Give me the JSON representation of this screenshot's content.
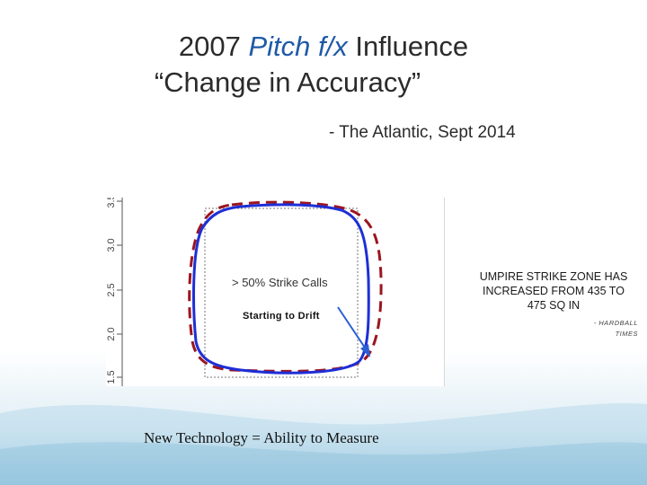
{
  "title": {
    "year": "2007",
    "pitch_fx": "Pitch f/x",
    "influence": "Influence",
    "line2": "“Change in Accuracy”"
  },
  "source": "- The Atlantic, Sept 2014",
  "plot": {
    "y_ticks": [
      "3.5",
      "3.0",
      "2.5",
      "2.0",
      "1.5"
    ],
    "strike_label": "> 50% Strike Calls",
    "drift_label": "Starting to Drift",
    "colors": {
      "solid_zone": "#1e2fd6",
      "dashed_zone": "#9b1520",
      "box": "#777777",
      "arrow": "#2a5fd6"
    }
  },
  "umpire_note": "UMPIRE STRIKE ZONE HAS INCREASED FROM 435 TO 475 SQ IN",
  "attribution": "- HARDBALL TIMES",
  "footer": "New Technology = Ability to Measure"
}
